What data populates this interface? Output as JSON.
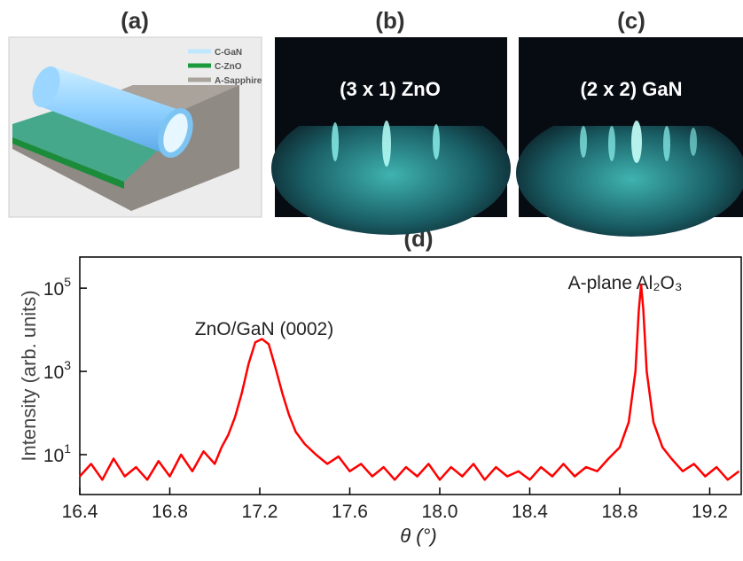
{
  "panels": {
    "a": {
      "label": "(a)",
      "legend": [
        "C-GaN",
        "C-ZnO",
        "A-Sapphire"
      ]
    },
    "b": {
      "label": "(b)",
      "title": "(3 x 1) ZnO"
    },
    "c": {
      "label": "(c)",
      "title": "(2 x 2) GaN"
    },
    "d": {
      "label": "(d)"
    }
  },
  "chart_data": {
    "type": "line",
    "x_label": "θ (°)",
    "y_label": "Intensity (arb. units)",
    "log_y": true,
    "grid": false,
    "annotations": [
      "ZnO/GaN (0002)",
      "A-plane Al₂O₃"
    ],
    "xlim": [
      16.4,
      19.34
    ],
    "ylim": [
      1.1,
      560000
    ],
    "xticks": [
      16.4,
      16.8,
      17.2,
      17.6,
      {
        "value": 18,
        "label": "18.0"
      },
      18.4,
      18.8,
      19.2
    ],
    "yticks": [
      {
        "value": 10,
        "label": "10",
        "exponent": "1"
      },
      {
        "value": 1000,
        "label": "10",
        "exponent": "3"
      },
      {
        "value": 100000,
        "label": "10",
        "exponent": "5"
      }
    ],
    "x": [
      16.4,
      16.45,
      16.5,
      16.55,
      16.6,
      16.65,
      16.7,
      16.75,
      16.8,
      16.85,
      16.9,
      16.95,
      17.0,
      17.03,
      17.06,
      17.09,
      17.12,
      17.15,
      17.18,
      17.21,
      17.24,
      17.27,
      17.3,
      17.33,
      17.36,
      17.4,
      17.45,
      17.5,
      17.55,
      17.6,
      17.65,
      17.7,
      17.75,
      17.8,
      17.85,
      17.9,
      17.95,
      18.0,
      18.05,
      18.1,
      18.15,
      18.2,
      18.25,
      18.3,
      18.35,
      18.4,
      18.45,
      18.5,
      18.55,
      18.6,
      18.65,
      18.7,
      18.75,
      18.8,
      18.84,
      18.87,
      18.885,
      18.895,
      18.905,
      18.92,
      18.95,
      18.99,
      19.03,
      19.08,
      19.13,
      19.18,
      19.23,
      19.28,
      19.33
    ],
    "series": [
      {
        "color": "#ff0000",
        "values": [
          3,
          6,
          2.5,
          8,
          3,
          5,
          2.5,
          7,
          3,
          10,
          4,
          12,
          6,
          15,
          30,
          80,
          300,
          1500,
          5000,
          6000,
          4500,
          1200,
          300,
          90,
          35,
          18,
          10,
          6,
          9,
          4,
          6,
          3,
          5,
          2.5,
          5,
          3,
          6,
          2.5,
          5,
          3,
          6,
          2.5,
          5,
          3,
          4,
          2.5,
          5,
          3,
          6,
          3,
          5,
          4,
          8,
          15,
          60,
          1000,
          30000,
          120000,
          30000,
          1000,
          60,
          15,
          8,
          4,
          6,
          3,
          5,
          2.5,
          4
        ]
      }
    ]
  }
}
